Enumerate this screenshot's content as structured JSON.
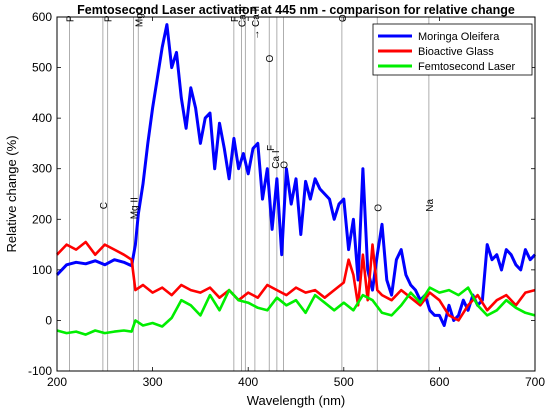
{
  "chart_data": {
    "type": "line",
    "title": "Femtosecond Laser activation at 445 nm - comparison for relative change",
    "xlabel": "Wavelength (nm)",
    "ylabel": "Relative change (%)",
    "xlim": [
      200,
      700
    ],
    "ylim": [
      -100,
      600
    ],
    "xticks": [
      200,
      300,
      400,
      500,
      600,
      700
    ],
    "yticks": [
      -100,
      0,
      100,
      200,
      300,
      400,
      500,
      600
    ],
    "grid": false,
    "legend_position": "top-right",
    "series": [
      {
        "name": "Moringa Oleifera",
        "color": "#0000ff",
        "x": [
          200,
          210,
          220,
          230,
          240,
          250,
          260,
          270,
          278,
          282,
          285,
          290,
          295,
          300,
          305,
          310,
          315,
          320,
          325,
          330,
          335,
          340,
          345,
          350,
          355,
          360,
          365,
          370,
          375,
          380,
          385,
          390,
          395,
          400,
          405,
          410,
          415,
          420,
          425,
          430,
          435,
          440,
          445,
          450,
          455,
          460,
          465,
          470,
          475,
          480,
          485,
          490,
          495,
          500,
          505,
          510,
          515,
          520,
          525,
          530,
          535,
          540,
          545,
          550,
          555,
          560,
          565,
          570,
          575,
          580,
          585,
          590,
          595,
          600,
          605,
          610,
          615,
          620,
          625,
          630,
          635,
          640,
          645,
          650,
          655,
          660,
          665,
          670,
          675,
          680,
          685,
          690,
          695,
          700
        ],
        "y": [
          90,
          110,
          115,
          112,
          118,
          110,
          120,
          115,
          108,
          150,
          210,
          270,
          350,
          420,
          480,
          540,
          585,
          500,
          530,
          440,
          380,
          460,
          420,
          350,
          400,
          410,
          300,
          390,
          340,
          280,
          360,
          300,
          330,
          290,
          340,
          350,
          240,
          300,
          180,
          280,
          130,
          300,
          230,
          280,
          170,
          275,
          240,
          280,
          260,
          250,
          240,
          200,
          230,
          240,
          140,
          200,
          80,
          300,
          100,
          60,
          130,
          190,
          80,
          50,
          120,
          140,
          90,
          70,
          60,
          40,
          50,
          20,
          10,
          10,
          -10,
          30,
          0,
          10,
          40,
          20,
          50,
          30,
          40,
          150,
          120,
          130,
          100,
          140,
          130,
          110,
          100,
          140,
          120,
          130
        ]
      },
      {
        "name": "Bioactive Glass",
        "color": "#ff0000",
        "x": [
          200,
          210,
          220,
          230,
          240,
          250,
          260,
          270,
          278,
          282,
          290,
          300,
          310,
          320,
          330,
          340,
          350,
          360,
          370,
          380,
          390,
          400,
          410,
          420,
          430,
          440,
          450,
          460,
          470,
          480,
          490,
          500,
          505,
          510,
          515,
          520,
          525,
          530,
          535,
          540,
          550,
          560,
          570,
          580,
          590,
          600,
          610,
          620,
          630,
          640,
          650,
          660,
          670,
          680,
          690,
          700
        ],
        "y": [
          130,
          150,
          140,
          155,
          130,
          150,
          140,
          130,
          120,
          60,
          70,
          55,
          65,
          50,
          70,
          60,
          55,
          65,
          45,
          60,
          40,
          55,
          45,
          70,
          60,
          50,
          65,
          55,
          60,
          45,
          60,
          75,
          120,
          90,
          30,
          130,
          40,
          150,
          60,
          50,
          40,
          60,
          45,
          30,
          55,
          40,
          10,
          0,
          30,
          50,
          20,
          40,
          50,
          30,
          55,
          60
        ]
      },
      {
        "name": "Femtosecond Laser",
        "color": "#00ee00",
        "x": [
          200,
          210,
          220,
          230,
          240,
          250,
          260,
          270,
          278,
          282,
          290,
          300,
          310,
          320,
          330,
          340,
          350,
          360,
          370,
          380,
          390,
          400,
          410,
          420,
          430,
          440,
          450,
          460,
          470,
          480,
          490,
          500,
          510,
          520,
          530,
          540,
          550,
          560,
          570,
          580,
          590,
          600,
          610,
          620,
          630,
          640,
          650,
          660,
          670,
          680,
          690,
          700
        ],
        "y": [
          -20,
          -25,
          -22,
          -28,
          -20,
          -25,
          -22,
          -20,
          -22,
          0,
          -10,
          -5,
          -12,
          5,
          40,
          30,
          10,
          50,
          20,
          60,
          40,
          35,
          25,
          20,
          45,
          30,
          40,
          15,
          50,
          35,
          20,
          35,
          20,
          50,
          40,
          15,
          10,
          30,
          55,
          35,
          65,
          55,
          60,
          50,
          65,
          30,
          10,
          20,
          40,
          25,
          15,
          10
        ]
      }
    ],
    "annotations": [
      {
        "text": "P",
        "x": 213,
        "y": 590
      },
      {
        "text": "P",
        "x": 253,
        "y": 590
      },
      {
        "text": "Mg I",
        "x": 285,
        "y": 580
      },
      {
        "text": "F",
        "x": 385,
        "y": 590
      },
      {
        "text": "Ca II",
        "x": 393,
        "y": 580
      },
      {
        "text": "→ Ca II",
        "x": 407,
        "y": 555
      },
      {
        "text": "O",
        "x": 422,
        "y": 510
      },
      {
        "text": "F",
        "x": 423,
        "y": 335
      },
      {
        "text": "Ca I",
        "x": 428,
        "y": 300
      },
      {
        "text": "O",
        "x": 437,
        "y": 300
      },
      {
        "text": "O",
        "x": 498,
        "y": 590
      },
      {
        "text": "C",
        "x": 248,
        "y": 220
      },
      {
        "text": "Mg II",
        "x": 280,
        "y": 200
      },
      {
        "text": "O",
        "x": 535,
        "y": 215
      },
      {
        "text": "Na",
        "x": 589,
        "y": 215
      }
    ],
    "reference_lines_x": [
      213,
      248,
      253,
      280,
      285,
      385,
      393,
      397,
      407,
      422,
      430,
      437,
      498,
      535,
      589
    ]
  }
}
